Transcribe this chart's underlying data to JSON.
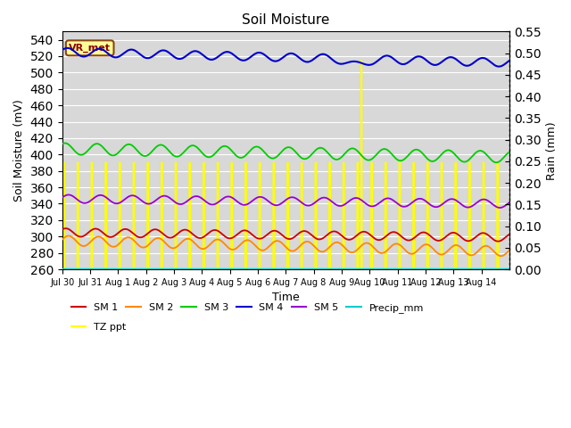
{
  "title": "Soil Moisture",
  "xlabel": "Time",
  "ylabel_left": "Soil Moisture (mV)",
  "ylabel_right": "Rain (mm)",
  "ylim_left": [
    260,
    550
  ],
  "ylim_right": [
    0.0,
    0.55
  ],
  "yticks_left": [
    260,
    280,
    300,
    320,
    340,
    360,
    380,
    400,
    420,
    440,
    460,
    480,
    500,
    520,
    540
  ],
  "yticks_right": [
    0.0,
    0.05,
    0.1,
    0.15,
    0.2,
    0.25,
    0.3,
    0.35,
    0.4,
    0.45,
    0.5,
    0.55
  ],
  "background_color": "#d8d8d8",
  "vr_met_label": "VR_met",
  "vr_met_color": "#8b0000",
  "vr_met_bg": "#ffff99",
  "vr_met_border": "#8b4513",
  "colors": {
    "SM1": "#cc0000",
    "SM2": "#ff8800",
    "SM3": "#00cc00",
    "SM4": "#0000cc",
    "SM5": "#9900cc",
    "Precip": "#00cccc",
    "TZ": "#ffff00"
  },
  "xtick_labels": [
    "Jul 30",
    "Jul 31",
    "Aug 1",
    "Aug 2",
    "Aug 3",
    "Aug 4",
    "Aug 5",
    "Aug 6",
    "Aug 7",
    "Aug 8",
    "Aug 9",
    "Aug 10",
    "Aug 11",
    "Aug 12",
    "Aug 13",
    "Aug 14"
  ]
}
